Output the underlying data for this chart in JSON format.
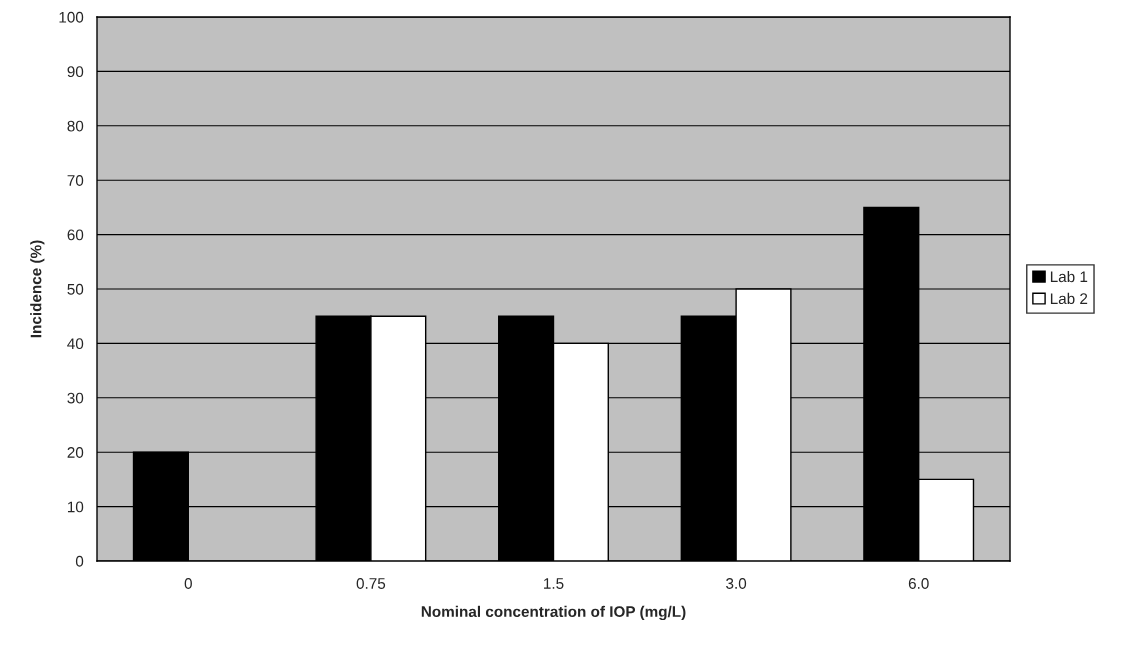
{
  "chart_data": {
    "type": "bar",
    "xlabel": "Nominal concentration of IOP (mg/L)",
    "ylabel": "Incidence (%)",
    "categories": [
      "0",
      "0.75",
      "1.5",
      "3.0",
      "6.0"
    ],
    "series": [
      {
        "name": "Lab 1",
        "color": "#000000",
        "values": [
          20,
          45,
          45,
          45,
          65
        ]
      },
      {
        "name": "Lab 2",
        "color": "#ffffff",
        "values": [
          null,
          45,
          40,
          50,
          15
        ]
      }
    ],
    "ylim": [
      0,
      100
    ],
    "yticks": [
      0,
      10,
      20,
      30,
      40,
      50,
      60,
      70,
      80,
      90,
      100
    ],
    "grid": "y",
    "legend": "right"
  }
}
